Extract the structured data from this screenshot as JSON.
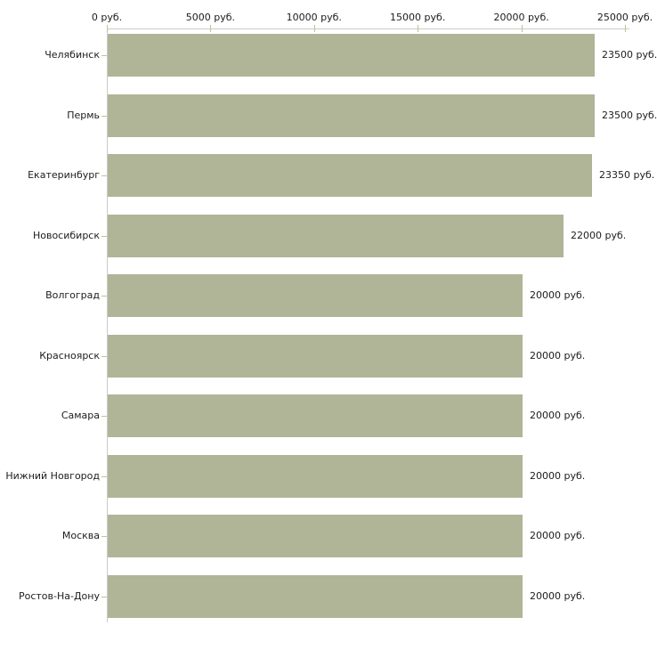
{
  "chart_data": {
    "type": "bar",
    "orientation": "horizontal",
    "title": "",
    "xlabel": "",
    "ylabel": "",
    "xlim": [
      0,
      25000
    ],
    "grid": false,
    "legend_position": "none",
    "unit_suffix": " руб.",
    "x_ticks": [
      {
        "value": 0,
        "label": "0 руб."
      },
      {
        "value": 5000,
        "label": "5000 руб."
      },
      {
        "value": 10000,
        "label": "10000 руб."
      },
      {
        "value": 15000,
        "label": "15000 руб."
      },
      {
        "value": 20000,
        "label": "20000 руб."
      },
      {
        "value": 25000,
        "label": "25000 руб."
      }
    ],
    "bars": [
      {
        "category": "Челябинск",
        "value": 23500,
        "value_label": "23500 руб."
      },
      {
        "category": "Пермь",
        "value": 23500,
        "value_label": "23500 руб."
      },
      {
        "category": "Екатеринбург",
        "value": 23350,
        "value_label": "23350 руб."
      },
      {
        "category": "Новосибирск",
        "value": 22000,
        "value_label": "22000 руб."
      },
      {
        "category": "Волгоград",
        "value": 20000,
        "value_label": "20000 руб."
      },
      {
        "category": "Красноярск",
        "value": 20000,
        "value_label": "20000 руб."
      },
      {
        "category": "Самара",
        "value": 20000,
        "value_label": "20000 руб."
      },
      {
        "category": "Нижний Новгород",
        "value": 20000,
        "value_label": "20000 руб."
      },
      {
        "category": "Москва",
        "value": 20000,
        "value_label": "20000 руб."
      },
      {
        "category": "Ростов-На-Дону",
        "value": 20000,
        "value_label": "20000 руб."
      }
    ],
    "colors": {
      "bar": "#b0b597",
      "axis_line": "#cacaca",
      "tick": "#c1c19b",
      "text": "#1c1c1c",
      "background": "#ffffff"
    }
  }
}
